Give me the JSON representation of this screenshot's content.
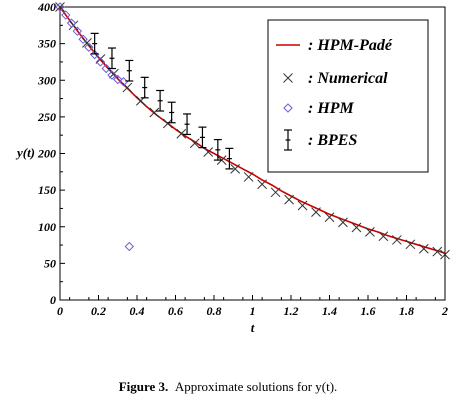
{
  "chart_data": {
    "type": "line",
    "xlabel": "t",
    "ylabel": "y(t)",
    "xlim": [
      0,
      2
    ],
    "ylim": [
      0,
      400
    ],
    "x_ticks": [
      "0",
      "0.2",
      "0.4",
      "0.6",
      "0.8",
      "1",
      "1.2",
      "1.4",
      "1.6",
      "1.8",
      "2"
    ],
    "y_ticks": [
      "0",
      "50",
      "100",
      "150",
      "200",
      "250",
      "300",
      "350",
      "400"
    ],
    "grid": false,
    "legend_position": "top-right",
    "series": [
      {
        "name": ": HPM-Padé",
        "kind": "line",
        "color": "#cc0000",
        "x": [
          0,
          0.05,
          0.1,
          0.15,
          0.2,
          0.25,
          0.3,
          0.35,
          0.4,
          0.45,
          0.5,
          0.55,
          0.6,
          0.65,
          0.7,
          0.75,
          0.8,
          0.85,
          0.9,
          0.95,
          1.0,
          1.05,
          1.1,
          1.15,
          1.2,
          1.25,
          1.3,
          1.35,
          1.4,
          1.45,
          1.5,
          1.55,
          1.6,
          1.65,
          1.7,
          1.75,
          1.8,
          1.85,
          1.9,
          1.95,
          2.0
        ],
        "y": [
          400,
          382,
          364,
          347,
          331,
          316,
          302,
          289,
          276,
          264,
          253,
          243,
          233,
          224,
          216,
          207,
          200,
          193,
          186,
          179,
          172,
          164,
          157,
          149,
          142,
          135,
          129,
          123,
          117,
          112,
          107,
          102,
          97,
          93,
          88,
          84,
          80,
          76,
          72,
          68,
          64
        ]
      },
      {
        "name": ": Numerical",
        "kind": "marker-x",
        "color": "#333333",
        "x": [
          0,
          0.07,
          0.14,
          0.21,
          0.28,
          0.35,
          0.42,
          0.49,
          0.56,
          0.63,
          0.7,
          0.77,
          0.84,
          0.91,
          0.98,
          1.05,
          1.12,
          1.19,
          1.26,
          1.33,
          1.4,
          1.47,
          1.54,
          1.61,
          1.68,
          1.75,
          1.82,
          1.89,
          1.96,
          2.0
        ],
        "y": [
          400,
          375,
          351,
          329,
          309,
          290,
          272,
          256,
          241,
          227,
          214,
          202,
          191,
          179,
          168,
          158,
          147,
          137,
          129,
          120,
          113,
          106,
          99,
          93,
          87,
          82,
          76,
          70,
          66,
          62
        ]
      },
      {
        "name": ": HPM",
        "kind": "marker-diamond",
        "color": "#6b5fd6",
        "x": [
          0,
          0.03,
          0.06,
          0.09,
          0.12,
          0.15,
          0.18,
          0.21,
          0.24,
          0.27,
          0.3,
          0.33,
          0.36
        ],
        "y": [
          400,
          389,
          378,
          367,
          356,
          345,
          335,
          325,
          316,
          307,
          301,
          298,
          73
        ]
      },
      {
        "name": ": BPES",
        "kind": "errorbar",
        "color": "#000000",
        "x": [
          0.18,
          0.27,
          0.36,
          0.44,
          0.52,
          0.58,
          0.66,
          0.74,
          0.82,
          0.88
        ],
        "y": [
          350,
          330,
          313,
          290,
          272,
          256,
          240,
          222,
          205,
          193
        ],
        "err": [
          14,
          14,
          14,
          14,
          14,
          14,
          14,
          14,
          14,
          14
        ]
      }
    ]
  },
  "caption": {
    "label": "Figure 3.",
    "text": "Approximate solutions for y(t)."
  }
}
